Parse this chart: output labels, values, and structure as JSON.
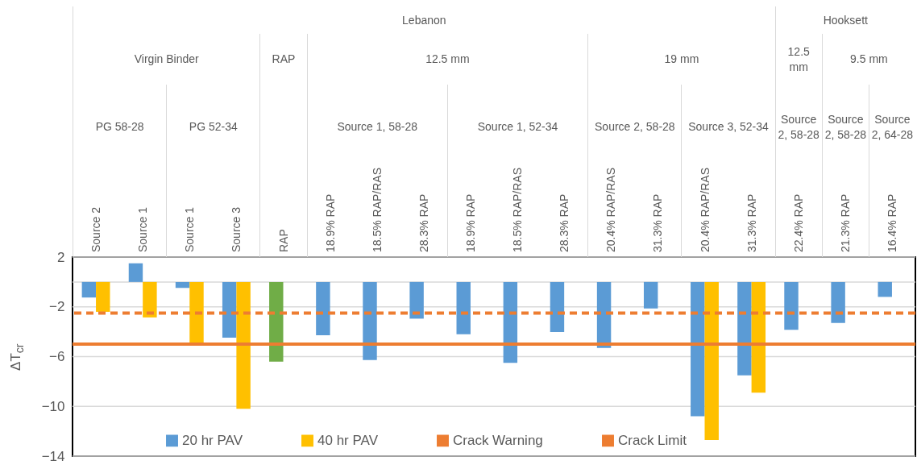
{
  "chart_data": {
    "type": "bar",
    "ylabel": "ΔT$_{cr}$",
    "categories": [
      "Source 2",
      "Source 1",
      "Source 1",
      "Source 3",
      "RAP",
      "18.9% RAP",
      "18.5% RAP/RAS",
      "28.3% RAP",
      "18.9% RAP",
      "18.5% RAP/RAS",
      "28.3% RAP",
      "20.4% RAP/RAS",
      "31.3% RAP",
      "20.4% RAP/RAS",
      "31.3% RAP",
      "22.4% RAP",
      "21.3% RAP",
      "16.4% RAP"
    ],
    "annotations": [
      "Lebanon",
      "Hooksett",
      "Virgin Binder",
      "RAP",
      "12.5 mm",
      "19 mm",
      "12.5 mm",
      "9.5 mm",
      "PG 58-28",
      "PG 52-34",
      "Source 1, 58-28",
      "Source 1, 52-34",
      "Source 2, 58-28",
      "Source 3, 52-34",
      "Source 2, 58-28",
      "Source 2, 58-28",
      "Source 2, 64-28"
    ],
    "series": [
      {
        "name": "20 hr PAV",
        "color": "#5b9bd5",
        "values": [
          -1.25,
          1.5,
          -0.47,
          -4.47,
          null,
          -4.28,
          -6.27,
          -2.95,
          -4.2,
          -6.5,
          -4.03,
          -5.3,
          -2.13,
          -10.8,
          -7.5,
          -3.84,
          -3.29,
          -1.2
        ]
      },
      {
        "name": "40 hr PAV",
        "color": "#ffc000",
        "values": [
          -2.4,
          -2.85,
          -4.86,
          -10.2,
          null,
          null,
          null,
          null,
          null,
          null,
          null,
          null,
          null,
          -12.7,
          -8.9,
          null,
          null,
          null
        ]
      },
      {
        "color": "#70ad47",
        "values": [
          null,
          null,
          null,
          null,
          -6.4,
          null,
          null,
          null,
          null,
          null,
          null,
          null,
          null,
          null,
          null,
          null,
          null,
          null
        ]
      }
    ],
    "ref_lines": [
      {
        "axis": "y",
        "value": -2.5,
        "label": "Crack Warning",
        "color": "#ed7d31",
        "line_style": "dashed"
      },
      {
        "axis": "y",
        "value": -5,
        "label": "Crack Limit",
        "color": "#ed7d31",
        "line_style": "solid"
      }
    ],
    "ylim": [
      -14,
      2
    ],
    "yticks": [
      2,
      -2,
      -6,
      -10,
      -14
    ],
    "grid": "y",
    "legend": "bottom"
  }
}
